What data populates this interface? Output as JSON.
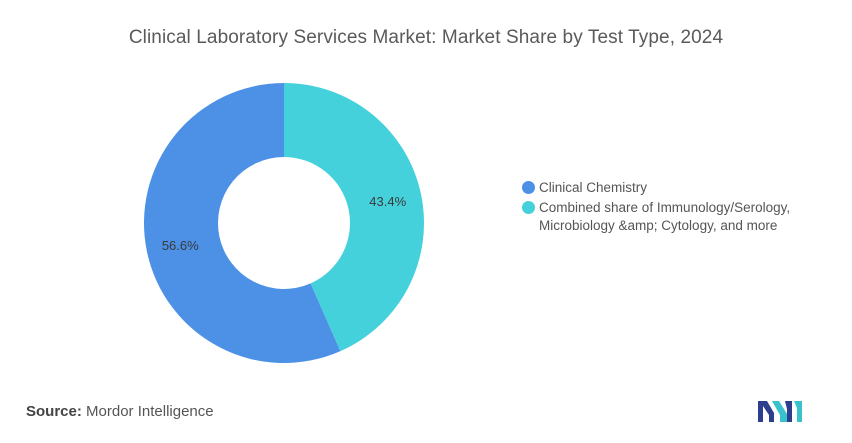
{
  "title": "Clinical Laboratory Services Market: Market Share by Test Type, 2024",
  "source": {
    "label": "Source:",
    "value": "Mordor Intelligence"
  },
  "colors": {
    "clinical_chemistry": "#4c91e6",
    "combined": "#45d1dc"
  },
  "chart_data": {
    "type": "pie",
    "donut": true,
    "title": "Clinical Laboratory Services Market: Market Share by Test Type, 2024",
    "categories": [
      "Clinical Chemistry",
      "Combined share of Immunology/Serology, Microbiology &amp; Cytology, and more"
    ],
    "values": [
      56.6,
      43.4
    ],
    "labels": [
      "56.6%",
      "43.4%"
    ],
    "colors": [
      "#4c91e6",
      "#45d1dc"
    ],
    "legend_position": "right"
  }
}
